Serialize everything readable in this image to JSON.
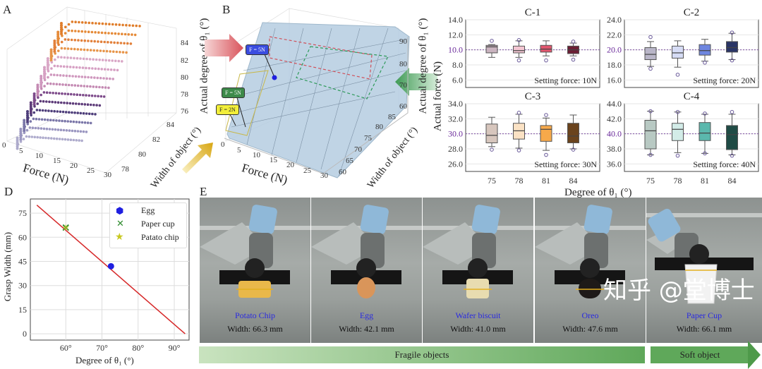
{
  "panel_labels": {
    "a": "A",
    "b": "B",
    "c_ylabel": "Actual force (N)",
    "c_xlabel": "Degree of θ₁ (°)",
    "d": "D",
    "e": "E"
  },
  "panel_a": {
    "force_ticks": [
      "0",
      "5",
      "10",
      "15",
      "20",
      "25",
      "30"
    ],
    "width_ticks": [
      "78",
      "80",
      "82",
      "84"
    ],
    "degree_ticks": [
      "84",
      "82",
      "80",
      "78",
      "76"
    ],
    "xlabel": "Force (N)",
    "ylabel": "Width of object (°)",
    "zlabel": "Actual degree of θ₁ (°)"
  },
  "panel_b": {
    "force_ticks": [
      "0",
      "5",
      "10",
      "15",
      "20",
      "25",
      "30"
    ],
    "width_ticks": [
      "60",
      "65",
      "70",
      "75",
      "80",
      "85"
    ],
    "degree_ticks": [
      "90",
      "80",
      "70",
      "60"
    ],
    "xlabel": "Force (N)",
    "ylabel": "Width of object (°)",
    "zlabel": "Actual degree of θ₁ (°)",
    "annotations": [
      {
        "text": "F = 5N",
        "color": "#3b4de0"
      },
      {
        "text": "F = 5N",
        "color": "#3d8a4a"
      },
      {
        "text": "F = 2N",
        "color": "#f2ee3a"
      }
    ]
  },
  "chart_data": [
    {
      "type": "box",
      "title": "C-1",
      "categories": [
        "75",
        "78",
        "81",
        "84"
      ],
      "ylim": [
        5,
        14
      ],
      "yticks": [
        "14.0",
        "12.0",
        "10.0",
        "8.0",
        "6.0"
      ],
      "reference": 10,
      "annotation": "Setting force: 10N",
      "boxes": [
        {
          "lo": 9.0,
          "q1": 9.6,
          "med": 10.4,
          "q3": 10.6,
          "hi": 10.7,
          "out": [
            11.2
          ],
          "color": "#c9b3bf"
        },
        {
          "lo": 9.0,
          "q1": 9.6,
          "med": 9.9,
          "q3": 10.5,
          "hi": 11.2,
          "out": [
            8.6,
            11.3
          ],
          "color": "#f4c6d3"
        },
        {
          "lo": 9.2,
          "q1": 9.7,
          "med": 10.1,
          "q3": 10.6,
          "hi": 11.2,
          "out": [
            8.6
          ],
          "color": "#e0566e"
        },
        {
          "lo": 9.2,
          "q1": 9.5,
          "med": 10.0,
          "q3": 10.5,
          "hi": 10.9,
          "out": [
            8.7,
            11.1
          ],
          "color": "#6b1f35"
        }
      ]
    },
    {
      "type": "box",
      "title": "C-2",
      "categories": [
        "75",
        "78",
        "81",
        "84"
      ],
      "ylim": [
        15,
        24
      ],
      "yticks": [
        "24.0",
        "22.0",
        "20.0",
        "18.0",
        "16.0"
      ],
      "reference": 20,
      "annotation": "Setting force: 20N",
      "boxes": [
        {
          "lo": 17.8,
          "q1": 18.7,
          "med": 19.4,
          "q3": 20.3,
          "hi": 21.1,
          "out": [
            17.5,
            21.7
          ],
          "color": "#b9b6c8"
        },
        {
          "lo": 17.7,
          "q1": 18.9,
          "med": 19.6,
          "q3": 20.5,
          "hi": 21.2,
          "out": [
            16.7
          ],
          "color": "#d6dcf5"
        },
        {
          "lo": 18.5,
          "q1": 19.3,
          "med": 19.9,
          "q3": 20.7,
          "hi": 21.4,
          "out": [
            18.3
          ],
          "color": "#6e86e0"
        },
        {
          "lo": 18.7,
          "q1": 19.7,
          "med": 20.3,
          "q3": 21.1,
          "hi": 22.2,
          "out": [
            18.6,
            22.3
          ],
          "color": "#2a3566"
        }
      ]
    },
    {
      "type": "box",
      "title": "C-3",
      "categories": [
        "75",
        "78",
        "81",
        "84"
      ],
      "ylim": [
        25,
        34
      ],
      "yticks": [
        "34.0",
        "32.0",
        "30.0",
        "28.0",
        "26.0"
      ],
      "reference": 30,
      "annotation": "Setting force: 30N",
      "boxes": [
        {
          "lo": 28.3,
          "q1": 28.8,
          "med": 29.8,
          "q3": 31.3,
          "hi": 32.2,
          "out": [
            27.9
          ],
          "color": "#d7c6bd"
        },
        {
          "lo": 28.1,
          "q1": 29.3,
          "med": 30.4,
          "q3": 31.4,
          "hi": 32.6,
          "out": [
            27.8,
            32.8
          ],
          "color": "#fbe2c4"
        },
        {
          "lo": 27.8,
          "q1": 29.0,
          "med": 30.6,
          "q3": 31.1,
          "hi": 32.1,
          "out": [
            27.2,
            32.5
          ],
          "color": "#f7a94a"
        },
        {
          "lo": 28.0,
          "q1": 28.8,
          "med": 29.7,
          "q3": 31.4,
          "hi": 32.5,
          "out": [
            27.9
          ],
          "color": "#6a431d"
        }
      ]
    },
    {
      "type": "box",
      "title": "C-4",
      "categories": [
        "75",
        "78",
        "81",
        "84"
      ],
      "ylim": [
        35,
        44
      ],
      "yticks": [
        "44.0",
        "42.0",
        "40.0",
        "38.0",
        "36.0"
      ],
      "reference": 40,
      "annotation": "Setting force: 40N",
      "boxes": [
        {
          "lo": 37.2,
          "q1": 38.0,
          "med": 40.4,
          "q3": 41.8,
          "hi": 43.0,
          "out": [
            37.2,
            43.0
          ],
          "color": "#b8c9c3"
        },
        {
          "lo": 37.5,
          "q1": 39.1,
          "med": 40.6,
          "q3": 41.4,
          "hi": 42.9,
          "out": [
            37.1,
            42.9
          ],
          "color": "#d3ece8"
        },
        {
          "lo": 37.4,
          "q1": 39.1,
          "med": 40.1,
          "q3": 41.5,
          "hi": 42.6,
          "out": [
            37.4,
            42.7
          ],
          "color": "#5bb8ad"
        },
        {
          "lo": 37.2,
          "q1": 37.9,
          "med": 39.9,
          "q3": 41.1,
          "hi": 42.6,
          "out": [
            37.1,
            42.9
          ],
          "color": "#1f4b45"
        }
      ]
    },
    {
      "type": "line",
      "title": "D",
      "xlabel": "Degree of θ₁ (°)",
      "ylabel": "Grasp Width (mm)",
      "xlim": [
        50.2,
        94.1
      ],
      "ylim": [
        -3.9,
        83.8
      ],
      "xticks": [
        {
          "v": 60,
          "label": "60°"
        },
        {
          "v": 70,
          "label": "70°"
        },
        {
          "v": 80,
          "label": "80°"
        },
        {
          "v": 90,
          "label": "90°"
        }
      ],
      "yticks": [
        {
          "v": 0,
          "label": "0"
        },
        {
          "v": 15,
          "label": "15"
        },
        {
          "v": 30,
          "label": "30"
        },
        {
          "v": 45,
          "label": "45"
        },
        {
          "v": 60,
          "label": "60"
        },
        {
          "v": 75,
          "label": "75"
        }
      ],
      "line": {
        "x": [
          52,
          93
        ],
        "y": [
          80,
          0
        ],
        "color": "#d62728"
      },
      "points": [
        {
          "name": "Egg",
          "x": 72.5,
          "y": 42,
          "marker": "hexagon",
          "color": "#1f1fe0"
        },
        {
          "name": "Paper cup",
          "x": 60,
          "y": 66,
          "marker": "x",
          "color": "#2e8b2e"
        },
        {
          "name": "Patato chip",
          "x": 60,
          "y": 66,
          "marker": "star",
          "color": "#c8c820"
        }
      ],
      "legend_position": "top-right",
      "grid": true
    }
  ],
  "panel_e": {
    "objects": [
      {
        "name": "Potato Chip",
        "width": "Width: 66.3 mm",
        "color": "#e9b84a"
      },
      {
        "name": "Egg",
        "width": "Width: 42.1 mm",
        "color": "#d9955a"
      },
      {
        "name": "Wafer biscuit",
        "width": "Width: 41.0 mm",
        "color": "#e8dcb0"
      },
      {
        "name": "Oreo",
        "width": "Width: 47.6 mm",
        "color": "#1e1a18"
      },
      {
        "name": "Paper Cup",
        "width": "Width: 66.1 mm",
        "color": "#f2f2f2"
      }
    ],
    "fragile_label": "Fragile objects",
    "soft_label": "Soft object",
    "watermark": "知乎 @堂博士"
  }
}
